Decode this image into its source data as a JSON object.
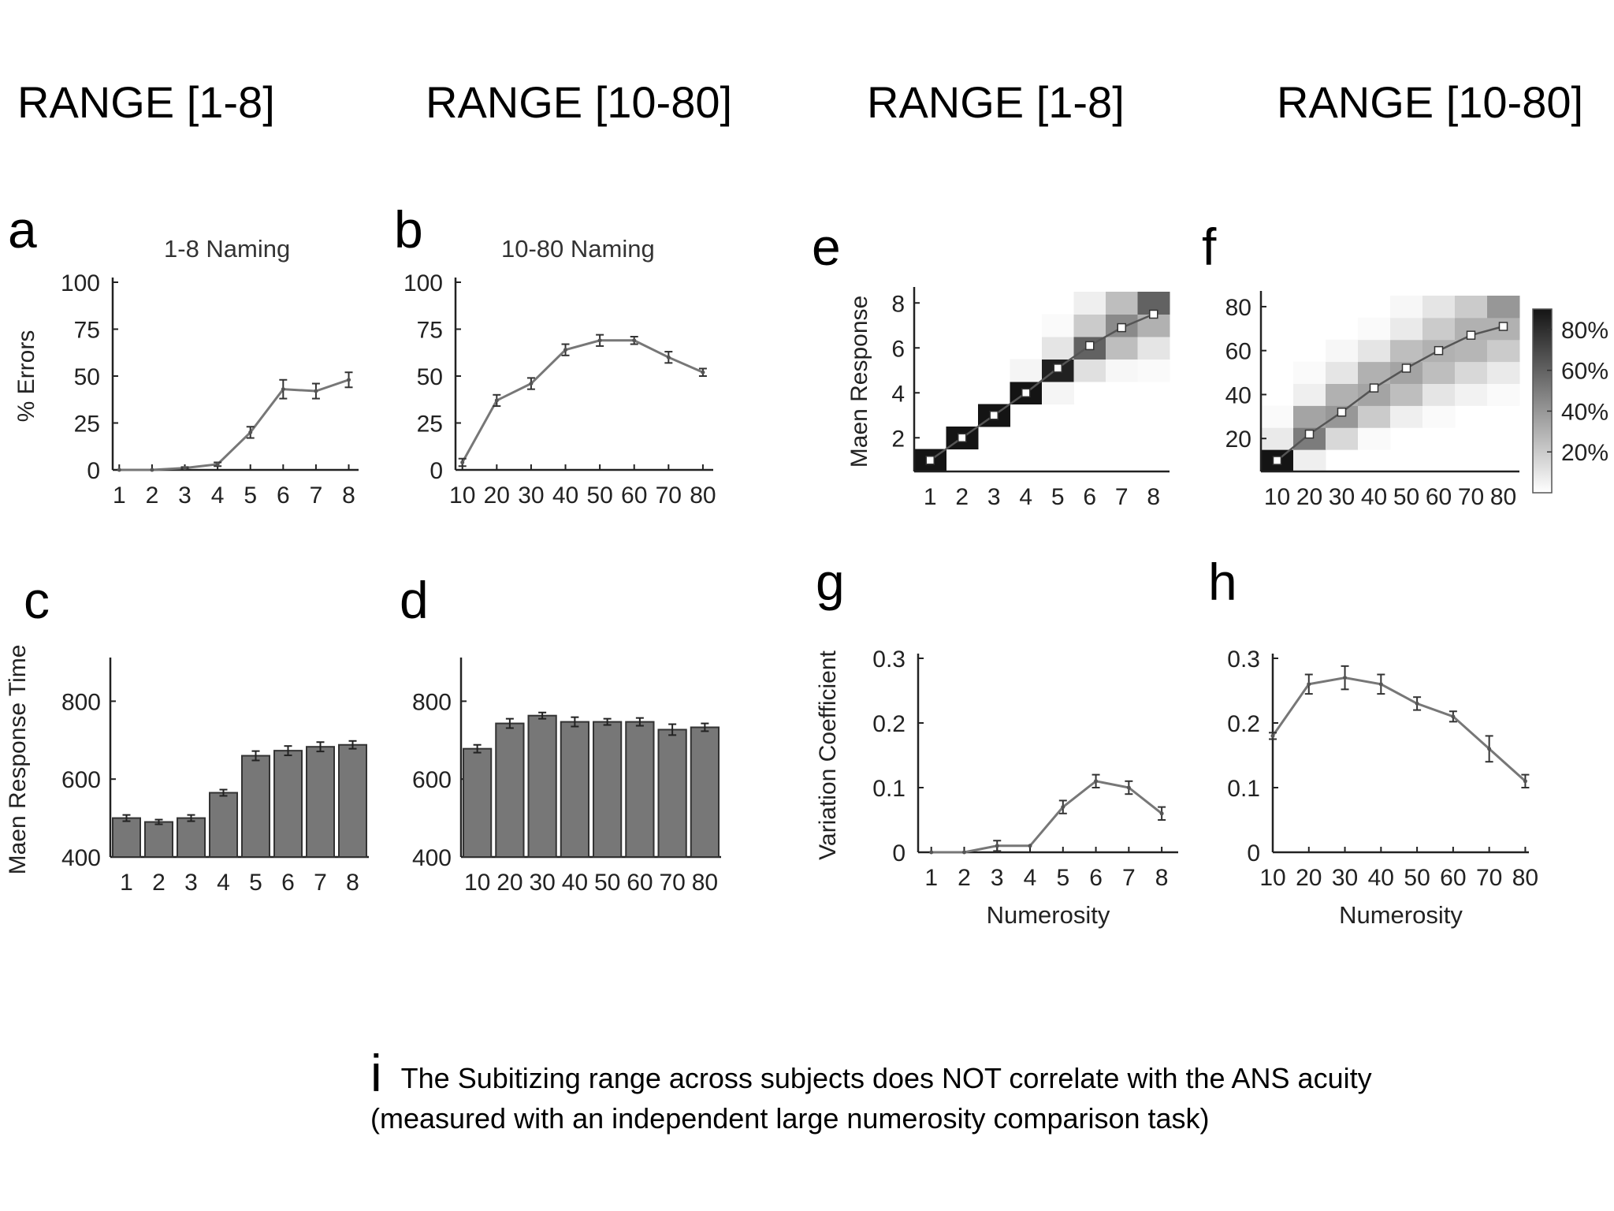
{
  "headers": [
    "RANGE [1-8]",
    "RANGE [10-80]",
    "RANGE [1-8]",
    "RANGE [10-80]"
  ],
  "footer": {
    "letter": "i",
    "line1": "The Subitizing range across subjects does NOT correlate with the ANS acuity",
    "line2": "(measured with an independent large numerosity comparison task)"
  },
  "chart_data": [
    {
      "panel": "a",
      "type": "line",
      "title": "1-8 Naming",
      "xlabel": "",
      "ylabel": "% Errors",
      "x": [
        1,
        2,
        3,
        4,
        5,
        6,
        7,
        8
      ],
      "series": [
        {
          "values": [
            0,
            0,
            1,
            3,
            20,
            43,
            42,
            48
          ],
          "errors": [
            0,
            0,
            0.5,
            1,
            3,
            5,
            4,
            4
          ]
        }
      ],
      "xlim": [
        0.8,
        8.3
      ],
      "ylim": [
        0,
        100
      ],
      "yticks": [
        0,
        25,
        50,
        75,
        100
      ],
      "xticks": [
        1,
        2,
        3,
        4,
        5,
        6,
        7,
        8
      ]
    },
    {
      "panel": "b",
      "type": "line",
      "title": "10-80 Naming",
      "xlabel": "",
      "ylabel": "",
      "x": [
        10,
        20,
        30,
        40,
        50,
        60,
        70,
        80
      ],
      "series": [
        {
          "values": [
            4,
            37,
            46,
            64,
            69,
            69,
            60,
            52
          ],
          "errors": [
            2,
            3,
            3,
            3,
            3,
            2,
            3,
            2
          ]
        }
      ],
      "xlim": [
        8,
        83
      ],
      "ylim": [
        0,
        100
      ],
      "yticks": [
        0,
        25,
        50,
        75,
        100
      ],
      "xticks": [
        10,
        20,
        30,
        40,
        50,
        60,
        70,
        80
      ]
    },
    {
      "panel": "c",
      "type": "bar",
      "title": "",
      "xlabel": "",
      "ylabel": "Maen Response Time",
      "categories": [
        "1",
        "2",
        "3",
        "4",
        "5",
        "6",
        "7",
        "8"
      ],
      "series": [
        {
          "values": [
            500,
            490,
            500,
            565,
            660,
            673,
            683,
            688
          ],
          "errors": [
            8,
            6,
            8,
            8,
            12,
            12,
            12,
            10
          ]
        }
      ],
      "ylim": [
        400,
        900
      ],
      "yticks": [
        400,
        600,
        800
      ]
    },
    {
      "panel": "d",
      "type": "bar",
      "title": "",
      "xlabel": "",
      "ylabel": "",
      "categories": [
        "10",
        "20",
        "30",
        "40",
        "50",
        "60",
        "70",
        "80"
      ],
      "series": [
        {
          "values": [
            678,
            743,
            763,
            747,
            747,
            747,
            727,
            733
          ],
          "errors": [
            10,
            12,
            8,
            12,
            8,
            10,
            14,
            10
          ]
        }
      ],
      "ylim": [
        400,
        900
      ],
      "yticks": [
        400,
        600,
        800
      ]
    },
    {
      "panel": "e",
      "type": "heatmap",
      "title": "",
      "xlabel": "",
      "ylabel": "Maen Response",
      "x": [
        1,
        2,
        3,
        4,
        5,
        6,
        7,
        8
      ],
      "y": [
        1,
        2,
        3,
        4,
        5,
        6,
        7,
        8
      ],
      "matrix": [
        [
          0.95,
          0,
          0,
          0,
          0,
          0,
          0,
          0
        ],
        [
          0,
          0.95,
          0,
          0,
          0,
          0,
          0,
          0
        ],
        [
          0,
          0,
          0.95,
          0,
          0,
          0,
          0,
          0
        ],
        [
          0,
          0,
          0,
          0.95,
          0.04,
          0,
          0,
          0
        ],
        [
          0,
          0,
          0,
          0.04,
          0.85,
          0.12,
          0.03,
          0.02
        ],
        [
          0,
          0,
          0,
          0,
          0.1,
          0.6,
          0.25,
          0.1
        ],
        [
          0,
          0,
          0,
          0,
          0.02,
          0.2,
          0.45,
          0.3
        ],
        [
          0,
          0,
          0,
          0,
          0,
          0.06,
          0.25,
          0.6
        ]
      ],
      "mean_response": [
        1,
        2,
        3,
        4,
        5.1,
        6.1,
        6.9,
        7.5
      ],
      "ylim": [
        0.5,
        8.5
      ],
      "yticks": [
        2,
        4,
        6,
        8
      ],
      "xticks": [
        1,
        2,
        3,
        4,
        5,
        6,
        7,
        8
      ]
    },
    {
      "panel": "f",
      "type": "heatmap",
      "title": "",
      "xlabel": "",
      "ylabel": "",
      "x": [
        10,
        20,
        30,
        40,
        50,
        60,
        70,
        80
      ],
      "y": [
        10,
        20,
        30,
        40,
        50,
        60,
        70,
        80
      ],
      "matrix": [
        [
          0.9,
          0.06,
          0,
          0,
          0,
          0,
          0,
          0
        ],
        [
          0.08,
          0.5,
          0.15,
          0.02,
          0,
          0,
          0,
          0
        ],
        [
          0.02,
          0.35,
          0.4,
          0.2,
          0.06,
          0.02,
          0,
          0
        ],
        [
          0,
          0.06,
          0.3,
          0.35,
          0.25,
          0.1,
          0.05,
          0.02
        ],
        [
          0,
          0.02,
          0.1,
          0.3,
          0.35,
          0.25,
          0.15,
          0.08
        ],
        [
          0,
          0,
          0.03,
          0.1,
          0.25,
          0.3,
          0.28,
          0.2
        ],
        [
          0,
          0,
          0,
          0.02,
          0.08,
          0.2,
          0.3,
          0.3
        ],
        [
          0,
          0,
          0,
          0,
          0.03,
          0.1,
          0.2,
          0.4
        ]
      ],
      "mean_response": [
        10,
        22,
        32,
        43,
        52,
        60,
        67,
        71
      ],
      "ylim": [
        5,
        85
      ],
      "yticks": [
        20,
        40,
        60,
        80
      ],
      "xticks": [
        10,
        20,
        30,
        40,
        50,
        60,
        70,
        80
      ],
      "colorbar": {
        "ticks": [
          "20%",
          "40%",
          "60%",
          "80%"
        ],
        "range": [
          0,
          0.9
        ]
      }
    },
    {
      "panel": "g",
      "type": "line",
      "title": "",
      "xlabel": "Numerosity",
      "ylabel": "Variation Coefficient",
      "x": [
        1,
        2,
        3,
        4,
        5,
        6,
        7,
        8
      ],
      "series": [
        {
          "values": [
            0,
            0,
            0.01,
            0.01,
            0.07,
            0.11,
            0.1,
            0.06
          ],
          "errors": [
            0,
            0,
            0.008,
            0,
            0.01,
            0.01,
            0.01,
            0.01
          ]
        }
      ],
      "xlim": [
        0.6,
        8.5
      ],
      "ylim": [
        0,
        0.3
      ],
      "yticks": [
        0,
        0.1,
        0.2,
        0.3
      ],
      "xticks": [
        1,
        2,
        3,
        4,
        5,
        6,
        7,
        8
      ]
    },
    {
      "panel": "h",
      "type": "line",
      "title": "",
      "xlabel": "Numerosity",
      "ylabel": "",
      "x": [
        10,
        20,
        30,
        40,
        50,
        60,
        70,
        80
      ],
      "series": [
        {
          "values": [
            0.18,
            0.26,
            0.27,
            0.26,
            0.23,
            0.21,
            0.16,
            0.11
          ],
          "errors": [
            0.005,
            0.015,
            0.018,
            0.015,
            0.01,
            0.008,
            0.02,
            0.01
          ]
        }
      ],
      "xlim": [
        10,
        81
      ],
      "ylim": [
        0,
        0.3
      ],
      "yticks": [
        0,
        0.1,
        0.2,
        0.3
      ],
      "xticks": [
        10,
        20,
        30,
        40,
        50,
        60,
        70,
        80
      ]
    }
  ]
}
